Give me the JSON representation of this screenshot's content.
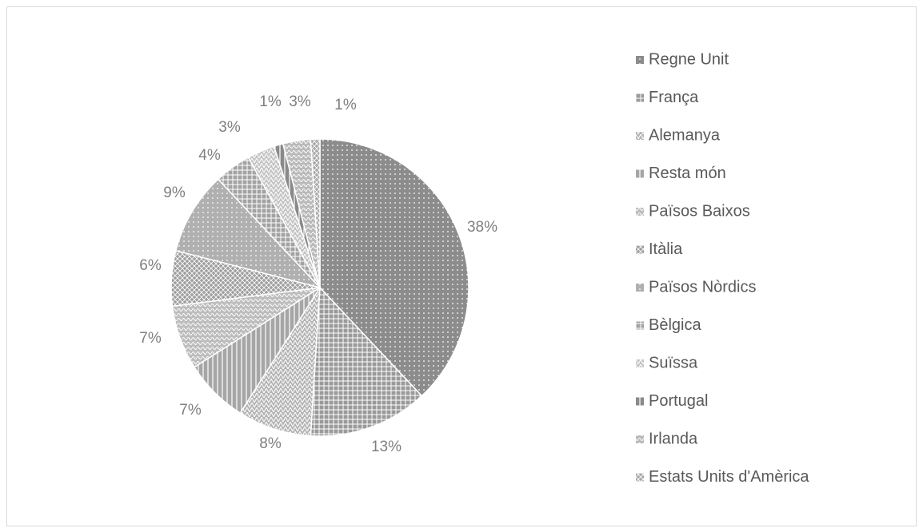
{
  "chart_data": {
    "type": "pie",
    "categories": [
      "Regne Unit",
      "França",
      "Alemanya",
      "Resta món",
      "Països Baixos",
      "Itàlia",
      "Països Nòrdics",
      "Bèlgica",
      "Suïssa",
      "Portugal",
      "Irlanda",
      "Estats Units d'Amèrica"
    ],
    "values": [
      38,
      13,
      8,
      7,
      7,
      6,
      9,
      4,
      3,
      1,
      3,
      1
    ],
    "value_labels": [
      "38%",
      "13%",
      "8%",
      "7%",
      "7%",
      "6%",
      "9%",
      "4%",
      "3%",
      "1%",
      "3%",
      "1%"
    ],
    "colors": [
      "#8c8c8c",
      "#9a9a9a",
      "#b5b5b5",
      "#a6a6a6",
      "#bdbdbd",
      "#9e9e9e",
      "#b0b0b0",
      "#a3a3a3",
      "#c4c4c4",
      "#8a8a8a",
      "#bababa",
      "#a8a8a8"
    ]
  }
}
